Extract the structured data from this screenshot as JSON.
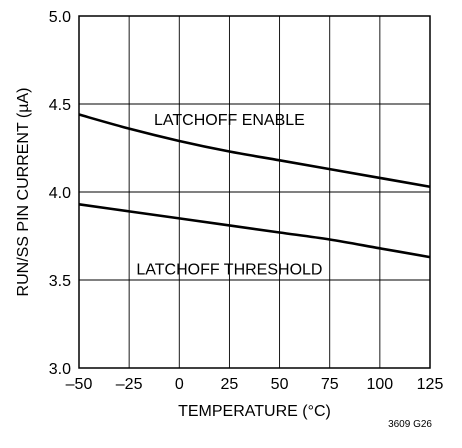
{
  "chart_data": {
    "type": "line",
    "title": "",
    "xlabel": "TEMPERATURE (°C)",
    "ylabel": "RUN/SS PIN CURRENT (µA)",
    "xlim": [
      -50,
      125
    ],
    "ylim": [
      3.0,
      5.0
    ],
    "x_ticks": [
      -50,
      -25,
      0,
      25,
      50,
      75,
      100,
      125
    ],
    "x_tick_labels": [
      "–50",
      "–25",
      "0",
      "25",
      "50",
      "75",
      "100",
      "125"
    ],
    "y_ticks": [
      3.0,
      3.5,
      4.0,
      4.5,
      5.0
    ],
    "y_tick_labels": [
      "3.0",
      "3.5",
      "4.0",
      "4.5",
      "5.0"
    ],
    "grid": true,
    "series": [
      {
        "name": "LATCHOFF ENABLE",
        "x": [
          -50,
          -25,
          0,
          25,
          50,
          75,
          100,
          125
        ],
        "y": [
          4.44,
          4.36,
          4.29,
          4.23,
          4.18,
          4.13,
          4.08,
          4.03
        ],
        "color": "#000000"
      },
      {
        "name": "LATCHOFF THRESHOLD",
        "x": [
          -50,
          -25,
          0,
          25,
          50,
          75,
          100,
          125
        ],
        "y": [
          3.93,
          3.89,
          3.85,
          3.81,
          3.77,
          3.73,
          3.68,
          3.63
        ],
        "color": "#000000"
      }
    ],
    "annotations": [
      "3609 G26"
    ]
  }
}
